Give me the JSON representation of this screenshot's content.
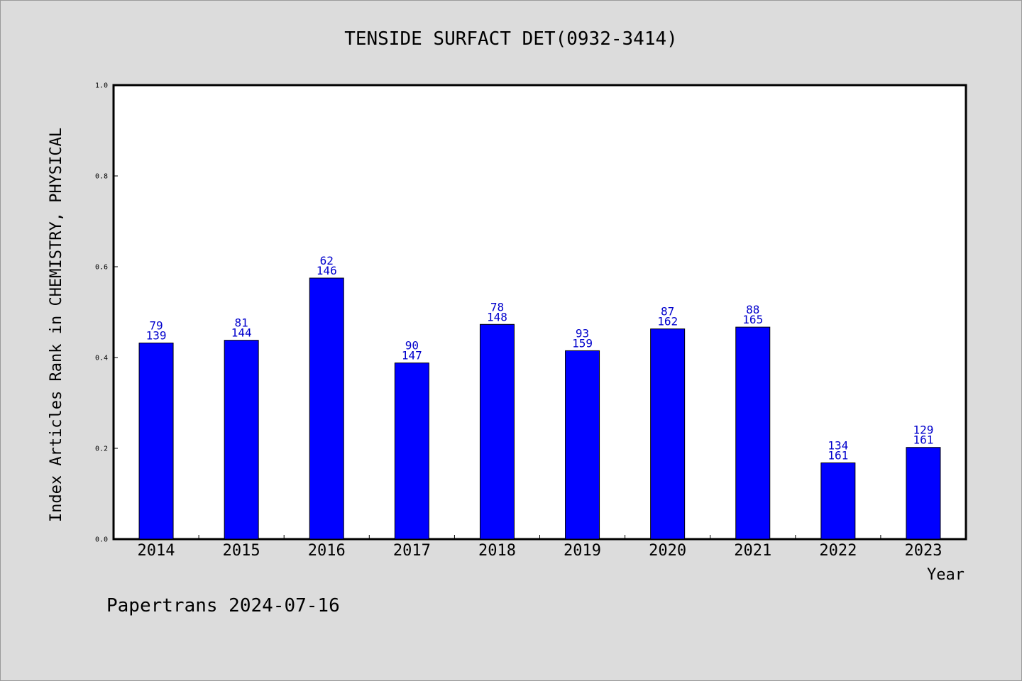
{
  "chart_data": {
    "type": "bar",
    "title": "TENSIDE SURFACT DET(0932-3414)",
    "xlabel": "Year",
    "ylabel": "Index Articles Rank in CHEMISTRY, PHYSICAL",
    "ylim": [
      0,
      1.0
    ],
    "yticks": [
      "0.0",
      "0.2",
      "0.4",
      "0.6",
      "0.8",
      "1.0"
    ],
    "categories": [
      "2014",
      "2015",
      "2016",
      "2017",
      "2018",
      "2019",
      "2020",
      "2021",
      "2022",
      "2023"
    ],
    "values": [
      0.432,
      0.438,
      0.575,
      0.388,
      0.473,
      0.415,
      0.463,
      0.467,
      0.168,
      0.202
    ],
    "labels_top": [
      "79",
      "81",
      "62",
      "90",
      "78",
      "93",
      "87",
      "88",
      "134",
      "129"
    ],
    "labels_bottom": [
      "139",
      "144",
      "146",
      "147",
      "148",
      "159",
      "162",
      "165",
      "161",
      "161"
    ],
    "bar_color": "#0000ff",
    "label_color": "#0000cc",
    "grid": false
  },
  "footer": "Papertrans 2024-07-16"
}
